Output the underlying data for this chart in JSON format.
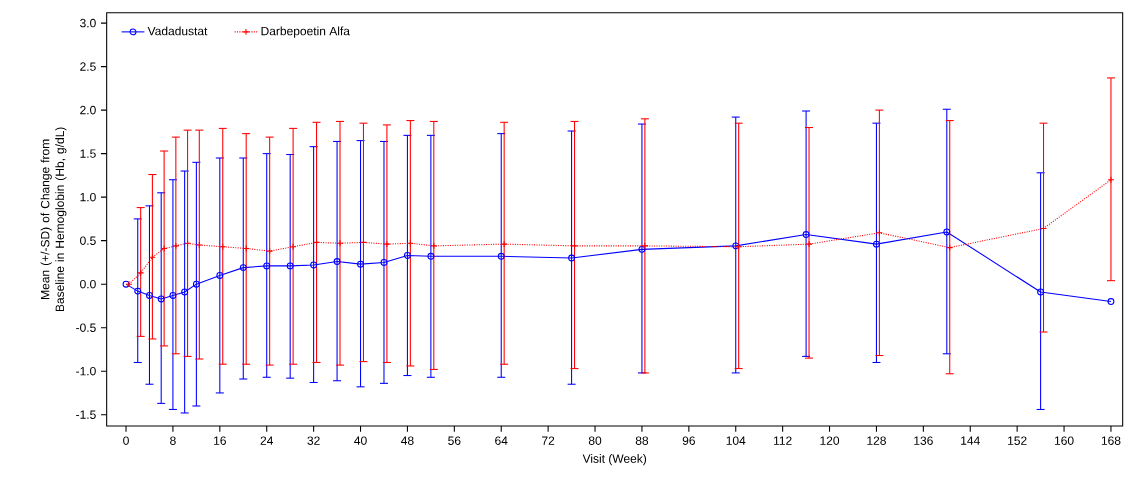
{
  "chart_data": {
    "type": "line",
    "xlabel": "Visit (Week)",
    "ylabel": "Mean (+/-SD) of Change from Baseline in Hemoglobin (Hb, g/dL)",
    "xlim": [
      -3.3,
      170
    ],
    "xticks": [
      0,
      8,
      16,
      24,
      32,
      40,
      48,
      56,
      64,
      72,
      80,
      88,
      96,
      104,
      112,
      120,
      128,
      136,
      144,
      152,
      160,
      168
    ],
    "ylim": [
      -1.63,
      3.12
    ],
    "yticks": [
      {
        "value": -1.5,
        "label": "-1.5"
      },
      {
        "value": -1.0,
        "label": "-1.0"
      },
      {
        "value": -0.5,
        "label": "-0.5"
      },
      {
        "value": 0.0,
        "label": "0.0"
      },
      {
        "value": 0.5,
        "label": "0.5"
      },
      {
        "value": 1.0,
        "label": "1.0"
      },
      {
        "value": 1.5,
        "label": "1.5"
      },
      {
        "value": 2.0,
        "label": "2.0"
      },
      {
        "value": 2.5,
        "label": "2.5"
      },
      {
        "value": 3.0,
        "label": "3.0"
      }
    ],
    "grid": false,
    "legend": "top left",
    "series": [
      {
        "name": "Vadadustat",
        "color": "#0000ff",
        "marker": "circle",
        "line_style": "solid",
        "x": [
          0,
          2,
          4,
          6,
          8,
          10,
          12,
          16,
          20,
          24,
          28,
          32,
          36,
          40,
          44,
          48,
          52,
          64,
          76,
          88,
          104,
          116,
          128,
          140,
          156,
          168
        ],
        "values": [
          0,
          -0.08,
          -0.13,
          -0.17,
          -0.13,
          -0.09,
          0.0,
          0.1,
          0.19,
          0.21,
          0.21,
          0.22,
          0.26,
          0.23,
          0.25,
          0.33,
          0.32,
          0.32,
          0.3,
          0.4,
          0.44,
          0.57,
          0.46,
          0.6,
          -0.09,
          -0.2
        ],
        "errors": [
          null,
          [
            -0.9,
            0.75
          ],
          [
            -1.15,
            0.9
          ],
          [
            -1.37,
            1.05
          ],
          [
            -1.44,
            1.2
          ],
          [
            -1.48,
            1.3
          ],
          [
            -1.4,
            1.4
          ],
          [
            -1.25,
            1.45
          ],
          [
            -1.09,
            1.45
          ],
          [
            -1.07,
            1.5
          ],
          [
            -1.08,
            1.49
          ],
          [
            -1.13,
            1.58
          ],
          [
            -1.11,
            1.64
          ],
          [
            -1.18,
            1.65
          ],
          [
            -1.14,
            1.64
          ],
          [
            -1.05,
            1.71
          ],
          [
            -1.07,
            1.71
          ],
          [
            -1.07,
            1.73
          ],
          [
            -1.15,
            1.76
          ],
          [
            -1.02,
            1.84
          ],
          [
            -1.02,
            1.92
          ],
          [
            -0.83,
            1.99
          ],
          [
            -0.9,
            1.85
          ],
          [
            -0.8,
            2.01
          ],
          [
            -1.44,
            1.28
          ],
          null
        ]
      },
      {
        "name": "Darbepoetin Alfa",
        "color": "#ff0000",
        "marker": "cross",
        "line_style": "dotted",
        "x": [
          0.5,
          2.5,
          4.5,
          6.5,
          8.5,
          10.5,
          12.5,
          16.5,
          20.5,
          24.5,
          28.5,
          32.5,
          36.5,
          40.5,
          44.5,
          48.5,
          52.5,
          64.5,
          76.5,
          88.5,
          104.5,
          116.5,
          128.5,
          140.5,
          156.5,
          168
        ],
        "values": [
          0,
          0.13,
          0.31,
          0.41,
          0.44,
          0.47,
          0.45,
          0.43,
          0.41,
          0.38,
          0.43,
          0.48,
          0.47,
          0.48,
          0.46,
          0.47,
          0.44,
          0.46,
          0.44,
          0.44,
          0.43,
          0.46,
          0.59,
          0.42,
          0.64,
          1.2
        ],
        "errors": [
          null,
          [
            -0.6,
            0.88
          ],
          [
            -0.63,
            1.26
          ],
          [
            -0.71,
            1.53
          ],
          [
            -0.8,
            1.69
          ],
          [
            -0.83,
            1.77
          ],
          [
            -0.86,
            1.77
          ],
          [
            -0.92,
            1.79
          ],
          [
            -0.92,
            1.73
          ],
          [
            -0.93,
            1.69
          ],
          [
            -0.92,
            1.79
          ],
          [
            -0.9,
            1.86
          ],
          [
            -0.93,
            1.87
          ],
          [
            -0.89,
            1.85
          ],
          [
            -0.9,
            1.83
          ],
          [
            -0.94,
            1.88
          ],
          [
            -0.98,
            1.87
          ],
          [
            -0.92,
            1.86
          ],
          [
            -0.97,
            1.87
          ],
          [
            -1.02,
            1.9
          ],
          [
            -0.97,
            1.85
          ],
          [
            -0.85,
            1.8
          ],
          [
            -0.82,
            2.0
          ],
          [
            -1.03,
            1.88
          ],
          [
            -0.55,
            1.85
          ],
          [
            0.04,
            2.37
          ]
        ]
      }
    ]
  }
}
